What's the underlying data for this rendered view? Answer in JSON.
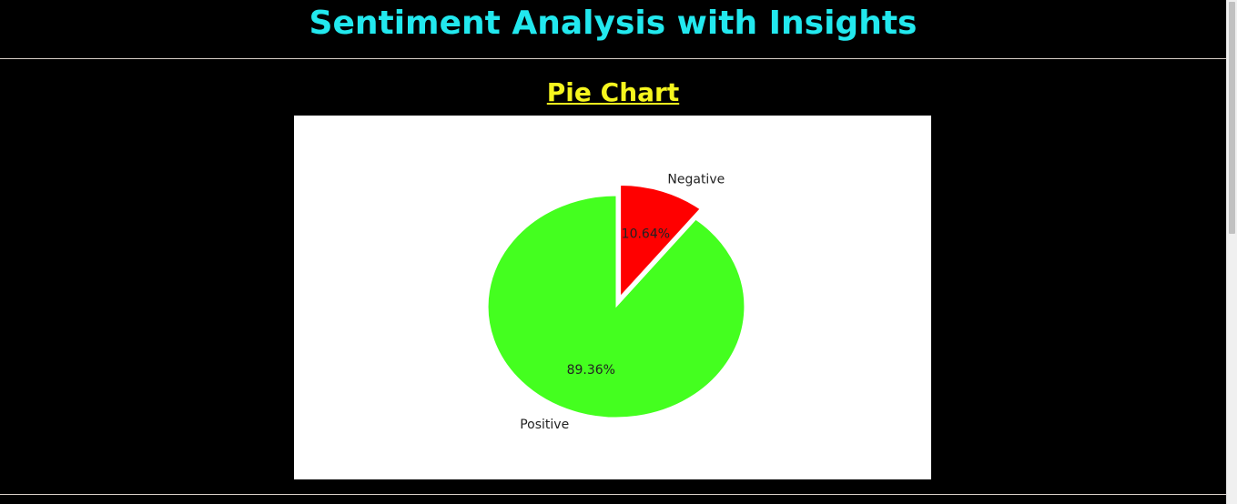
{
  "page": {
    "title": "Sentiment Analysis with Insights",
    "section_title": "Pie Chart"
  },
  "chart_data": {
    "type": "pie",
    "labels": [
      "Positive",
      "Negative"
    ],
    "values": [
      89.36,
      10.64
    ],
    "value_labels": [
      "89.36%",
      "10.64%"
    ],
    "colors": [
      "#44ff1f",
      "#ff0000"
    ],
    "exploded": [
      "Negative"
    ],
    "legend": false
  }
}
